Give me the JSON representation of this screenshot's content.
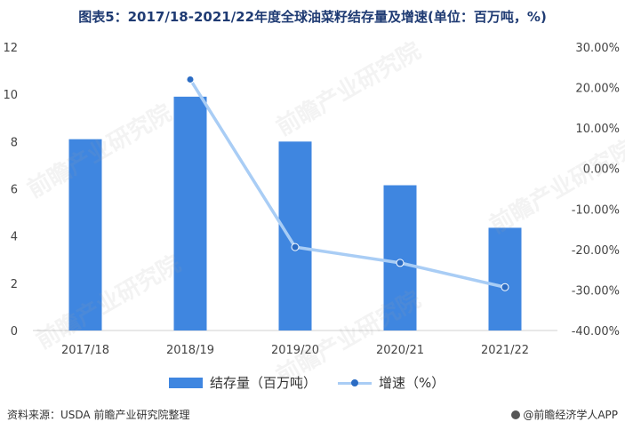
{
  "title": "图表5：2017/18-2021/22年度全球油菜籽结存量及增速(单位：百万吨，%)",
  "source": "资料来源：USDA 前瞻产业研究院整理",
  "brand": "@前瞻经济学人APP",
  "watermark": "前瞻产业研究院",
  "colors": {
    "bar": "#3f86e0",
    "line": "#a9cdf5",
    "marker": "#2b6cc4"
  },
  "chart_data": {
    "type": "bar",
    "categories": [
      "2017/18",
      "2018/19",
      "2019/20",
      "2020/21",
      "2021/22"
    ],
    "series": [
      {
        "name": "结存量（百万吨）",
        "type": "bar",
        "axis": "left",
        "values": [
          8.1,
          9.9,
          8.0,
          6.15,
          4.35
        ]
      },
      {
        "name": "增速（%）",
        "type": "line",
        "axis": "right",
        "values": [
          null,
          22.0,
          -19.4,
          -23.3,
          -29.3
        ]
      }
    ],
    "y_left": {
      "ylim": [
        0,
        12
      ],
      "ticks": [
        "0",
        "2",
        "4",
        "6",
        "8",
        "10",
        "12"
      ]
    },
    "y_right": {
      "ylim": [
        -40,
        30
      ],
      "ticks": [
        "-40.00%",
        "-30.00%",
        "-20.00%",
        "-10.00%",
        "0.00%",
        "10.00%",
        "20.00%",
        "30.00%"
      ]
    },
    "grid": false,
    "legend": "bottom"
  }
}
